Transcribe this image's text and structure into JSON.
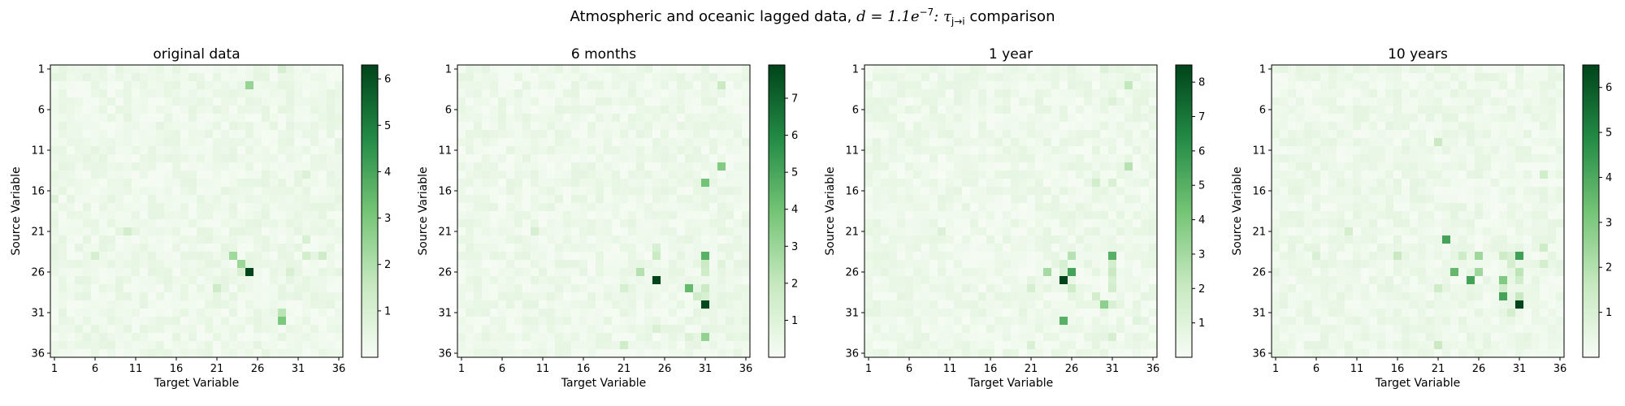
{
  "figure": {
    "suptitle_prefix": "Atmospheric and oceanic lagged data, ",
    "suptitle_math": "d = 1.1e",
    "suptitle_exp": "−7",
    "suptitle_mid": ": τ",
    "suptitle_sub": "j→i",
    "suptitle_suffix": " comparison"
  },
  "colors": {
    "cmap_low": "#f7fcf5",
    "cmap_mid": "#74c476",
    "cmap_high": "#00441b"
  },
  "chart_data": [
    {
      "type": "heatmap",
      "title": "original data",
      "xlabel": "Target Variable",
      "ylabel": "Source Variable",
      "xticks": [
        "1",
        "6",
        "11",
        "16",
        "21",
        "26",
        "31",
        "36"
      ],
      "yticks": [
        "1",
        "6",
        "11",
        "16",
        "21",
        "26",
        "31",
        "36"
      ],
      "colorbar_ticks": [
        "1",
        "2",
        "3",
        "4",
        "5",
        "6"
      ],
      "vmin": 0,
      "vmax": 6.3,
      "hotspots": [
        [
          3,
          25,
          2.5
        ],
        [
          21,
          10,
          1.2
        ],
        [
          24,
          6,
          1.1
        ],
        [
          24,
          34,
          1.3
        ],
        [
          24,
          23,
          2.3
        ],
        [
          25,
          24,
          2.4
        ],
        [
          26,
          25,
          6.3
        ],
        [
          26,
          24,
          1.0
        ],
        [
          28,
          21,
          1.3
        ],
        [
          32,
          29,
          3.0
        ],
        [
          31,
          29,
          1.8
        ],
        [
          22,
          32,
          1.0
        ],
        [
          24,
          32,
          1.2
        ],
        [
          26,
          30,
          1.0
        ],
        [
          1,
          29,
          1.1
        ],
        [
          14,
          32,
          0.9
        ],
        [
          17,
          1,
          0.9
        ]
      ]
    },
    {
      "type": "heatmap",
      "title": "6 months",
      "xlabel": "Target Variable",
      "ylabel": "Source Variable",
      "xticks": [
        "1",
        "6",
        "11",
        "16",
        "21",
        "26",
        "31",
        "36"
      ],
      "yticks": [
        "1",
        "6",
        "11",
        "16",
        "21",
        "26",
        "31",
        "36"
      ],
      "colorbar_ticks": [
        "1",
        "2",
        "3",
        "4",
        "5",
        "6",
        "7"
      ],
      "vmin": 0,
      "vmax": 7.9,
      "hotspots": [
        [
          13,
          33,
          3.6
        ],
        [
          15,
          31,
          4.0
        ],
        [
          21,
          10,
          1.3
        ],
        [
          3,
          33,
          1.8
        ],
        [
          23,
          25,
          1.3
        ],
        [
          24,
          25,
          1.8
        ],
        [
          24,
          31,
          4.6
        ],
        [
          25,
          31,
          1.8
        ],
        [
          26,
          23,
          2.4
        ],
        [
          26,
          31,
          1.6
        ],
        [
          27,
          25,
          7.9
        ],
        [
          28,
          21,
          1.4
        ],
        [
          28,
          31,
          1.8
        ],
        [
          28,
          29,
          4.3
        ],
        [
          29,
          30,
          1.6
        ],
        [
          29,
          31,
          1.3
        ],
        [
          30,
          31,
          7.8
        ],
        [
          33,
          25,
          1.2
        ],
        [
          34,
          29,
          1.1
        ],
        [
          34,
          31,
          3.2
        ],
        [
          35,
          21,
          1.6
        ],
        [
          25,
          33,
          1.0
        ]
      ]
    },
    {
      "type": "heatmap",
      "title": "1 year",
      "xlabel": "Target Variable",
      "ylabel": "Source Variable",
      "xticks": [
        "1",
        "6",
        "11",
        "16",
        "21",
        "26",
        "31",
        "36"
      ],
      "yticks": [
        "1",
        "6",
        "11",
        "16",
        "21",
        "26",
        "31",
        "36"
      ],
      "colorbar_ticks": [
        "1",
        "2",
        "3",
        "4",
        "5",
        "6",
        "7",
        "8"
      ],
      "vmin": 0,
      "vmax": 8.5,
      "hotspots": [
        [
          1,
          30,
          1.1
        ],
        [
          3,
          33,
          2.2
        ],
        [
          5,
          31,
          1.1
        ],
        [
          13,
          33,
          2.5
        ],
        [
          15,
          29,
          1.6
        ],
        [
          15,
          31,
          1.3
        ],
        [
          21,
          10,
          1.2
        ],
        [
          24,
          26,
          2.5
        ],
        [
          24,
          31,
          5.0
        ],
        [
          25,
          25,
          1.4
        ],
        [
          25,
          31,
          1.6
        ],
        [
          26,
          23,
          3.0
        ],
        [
          26,
          25,
          1.2
        ],
        [
          26,
          26,
          5.5
        ],
        [
          26,
          31,
          2.0
        ],
        [
          27,
          25,
          8.5
        ],
        [
          27,
          31,
          1.4
        ],
        [
          28,
          21,
          1.5
        ],
        [
          28,
          26,
          1.8
        ],
        [
          28,
          31,
          1.6
        ],
        [
          29,
          29,
          1.6
        ],
        [
          30,
          30,
          3.6
        ],
        [
          30,
          31,
          1.3
        ],
        [
          32,
          25,
          5.0
        ],
        [
          32,
          34,
          1.0
        ],
        [
          34,
          31,
          1.5
        ],
        [
          35,
          21,
          1.3
        ]
      ]
    },
    {
      "type": "heatmap",
      "title": "10 years",
      "xlabel": "Target Variable",
      "ylabel": "Source Variable",
      "xticks": [
        "1",
        "6",
        "11",
        "16",
        "21",
        "26",
        "31",
        "36"
      ],
      "yticks": [
        "1",
        "6",
        "11",
        "16",
        "21",
        "26",
        "31",
        "36"
      ],
      "colorbar_ticks": [
        "1",
        "2",
        "3",
        "4",
        "5",
        "6"
      ],
      "vmin": 0,
      "vmax": 6.5,
      "hotspots": [
        [
          10,
          21,
          1.5
        ],
        [
          14,
          34,
          1.3
        ],
        [
          21,
          10,
          1.2
        ],
        [
          22,
          22,
          4.2
        ],
        [
          23,
          34,
          1.4
        ],
        [
          24,
          16,
          1.6
        ],
        [
          24,
          24,
          1.4
        ],
        [
          24,
          26,
          2.4
        ],
        [
          24,
          29,
          1.4
        ],
        [
          24,
          31,
          4.3
        ],
        [
          24,
          30,
          1.0
        ],
        [
          25,
          30,
          1.2
        ],
        [
          25,
          34,
          1.2
        ],
        [
          26,
          23,
          3.6
        ],
        [
          26,
          26,
          2.4
        ],
        [
          26,
          31,
          1.8
        ],
        [
          27,
          25,
          4.2
        ],
        [
          27,
          29,
          3.0
        ],
        [
          27,
          31,
          1.3
        ],
        [
          28,
          21,
          1.4
        ],
        [
          28,
          29,
          1.3
        ],
        [
          29,
          29,
          4.2
        ],
        [
          29,
          31,
          1.6
        ],
        [
          30,
          31,
          6.5
        ],
        [
          31,
          30,
          1.2
        ],
        [
          35,
          21,
          1.5
        ],
        [
          24,
          6,
          1.0
        ]
      ]
    }
  ]
}
